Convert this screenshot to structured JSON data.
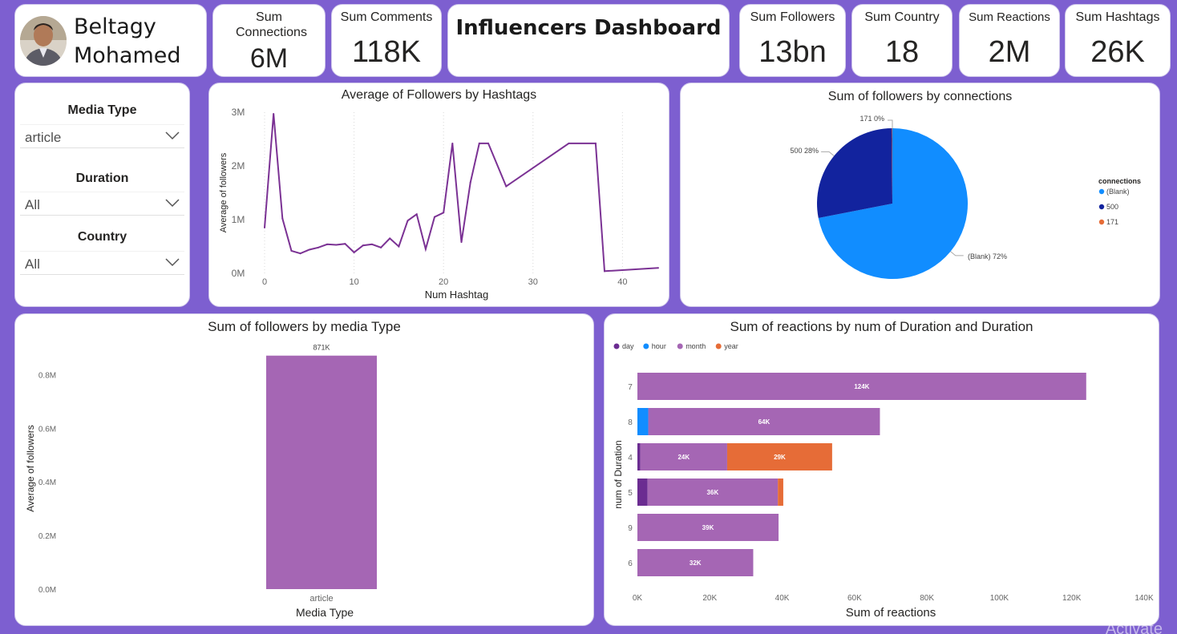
{
  "profile": {
    "name_line1": "Beltagy",
    "name_line2": "Mohamed"
  },
  "dashboard_title": "Influencers Dashboard",
  "kpis": {
    "connections": {
      "label": "Sum Connections",
      "value": "6M"
    },
    "comments": {
      "label": "Sum Comments",
      "value": "118K"
    },
    "followers": {
      "label": "Sum Followers",
      "value": "13bn"
    },
    "country": {
      "label": "Sum Country",
      "value": "18"
    },
    "reactions": {
      "label": "Sum Reactions",
      "value": "2M"
    },
    "hashtags": {
      "label": "Sum Hashtags",
      "value": "26K"
    }
  },
  "slicers": {
    "media_type": {
      "label": "Media Type",
      "value": "article"
    },
    "duration": {
      "label": "Duration",
      "value": "All"
    },
    "country": {
      "label": "Country",
      "value": "All"
    }
  },
  "watermark": "Activate",
  "colors": {
    "background": "#7d5fd0",
    "purple": "#a566b4",
    "line": "#7b3294",
    "light_blue": "#118dff",
    "navy": "#12239e",
    "orange": "#e66c37",
    "dark_purple": "#6b2c91"
  },
  "chart_data": [
    {
      "id": "line",
      "type": "line",
      "title": "Average of Followers by Hashtags",
      "xlabel": "Num Hashtag",
      "ylabel": "Average of followers",
      "xlim": [
        0,
        44
      ],
      "ylim": [
        0,
        3000000
      ],
      "x_ticks": [
        "0",
        "10",
        "20",
        "30",
        "40"
      ],
      "y_ticks": [
        "0M",
        "1M",
        "2M",
        "3M"
      ],
      "x": [
        0,
        1,
        2,
        3,
        4,
        5,
        6,
        7,
        8,
        9,
        10,
        11,
        12,
        13,
        14,
        15,
        16,
        17,
        18,
        19,
        20,
        21,
        22,
        23,
        24,
        25,
        27,
        34,
        37,
        38,
        44
      ],
      "values": [
        850000,
        2970000,
        1020000,
        420000,
        370000,
        440000,
        480000,
        540000,
        530000,
        550000,
        390000,
        520000,
        540000,
        480000,
        650000,
        500000,
        980000,
        1100000,
        450000,
        1050000,
        1130000,
        2420000,
        580000,
        1690000,
        2420000,
        2420000,
        1620000,
        2420000,
        2420000,
        40000,
        100000
      ]
    },
    {
      "id": "pie",
      "type": "pie",
      "title": "Sum of followers by connections",
      "legend_title": "connections",
      "legend_position": "right",
      "slices": [
        {
          "label": "(Blank)",
          "value": 72,
          "data_label": "(Blank) 72%",
          "color": "#118dff"
        },
        {
          "label": "500",
          "value": 28,
          "data_label": "500 28%",
          "color": "#12239e"
        },
        {
          "label": "171",
          "value": 0.1,
          "data_label": "171 0%",
          "color": "#e66c37"
        }
      ]
    },
    {
      "id": "bar",
      "type": "bar",
      "title": "Sum of followers by media Type",
      "xlabel": "Media Type",
      "ylabel": "Average of followers",
      "ylim": [
        0,
        900000
      ],
      "y_ticks": [
        "0.0M",
        "0.2M",
        "0.4M",
        "0.6M",
        "0.8M"
      ],
      "categories": [
        "article"
      ],
      "values": [
        871000
      ],
      "data_labels": [
        "871K"
      ]
    },
    {
      "id": "stacked",
      "type": "bar",
      "orientation": "horizontal",
      "stacked": true,
      "title": "Sum of reactions by num of Duration and Duration",
      "xlabel": "Sum of reactions",
      "ylabel": "num of Duration",
      "xlim": [
        0,
        140000
      ],
      "x_ticks": [
        "0K",
        "20K",
        "40K",
        "60K",
        "80K",
        "100K",
        "120K",
        "140K"
      ],
      "legend_position": "top-left",
      "categories": [
        "7",
        "8",
        "4",
        "5",
        "9",
        "6"
      ],
      "series": [
        {
          "name": "day",
          "color": "#6b2c91",
          "values": [
            0,
            0,
            800,
            2800,
            0,
            0
          ],
          "labels": [
            "",
            "",
            "",
            "",
            "",
            ""
          ]
        },
        {
          "name": "hour",
          "color": "#118dff",
          "values": [
            0,
            3000,
            0,
            0,
            0,
            0
          ],
          "labels": [
            "",
            "",
            "",
            "",
            "",
            ""
          ]
        },
        {
          "name": "month",
          "color": "#a566b4",
          "values": [
            124000,
            64000,
            24000,
            36000,
            39000,
            32000
          ],
          "labels": [
            "124K",
            "64K",
            "24K",
            "36K",
            "39K",
            "32K"
          ]
        },
        {
          "name": "year",
          "color": "#e66c37",
          "values": [
            0,
            0,
            29000,
            1500,
            0,
            0
          ],
          "labels": [
            "",
            "",
            "29K",
            "",
            "",
            ""
          ]
        }
      ]
    }
  ]
}
